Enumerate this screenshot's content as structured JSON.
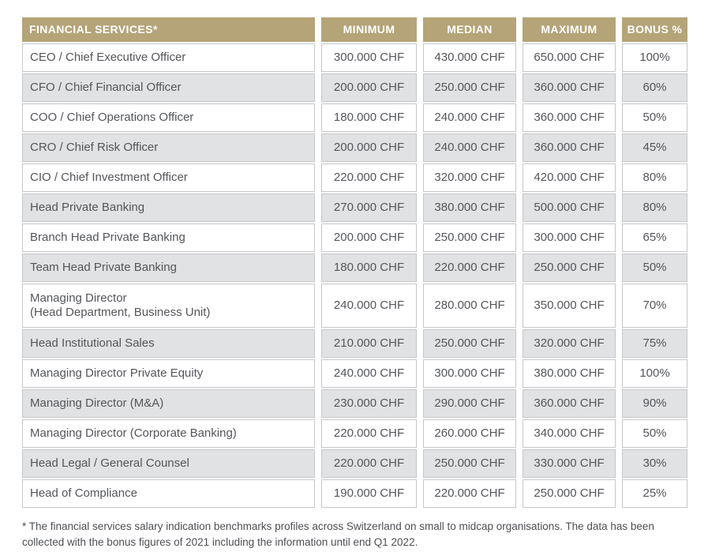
{
  "chart_data": {
    "type": "table",
    "title": "FINANCIAL SERVICES*",
    "columns": [
      {
        "key": "role",
        "label": "FINANCIAL SERVICES*",
        "align": "left"
      },
      {
        "key": "minimum",
        "label": "MINIMUM",
        "align": "center"
      },
      {
        "key": "median",
        "label": "MEDIAN",
        "align": "center"
      },
      {
        "key": "maximum",
        "label": "MAXIMUM",
        "align": "center"
      },
      {
        "key": "bonus",
        "label": "BONUS %",
        "align": "center"
      }
    ],
    "rows": [
      {
        "role": "CEO / Chief Executive Officer",
        "minimum": "300.000 CHF",
        "median": "430.000 CHF",
        "maximum": "650.000 CHF",
        "bonus": "100%"
      },
      {
        "role": "CFO / Chief Financial Officer",
        "minimum": "200.000 CHF",
        "median": "250.000 CHF",
        "maximum": "360.000 CHF",
        "bonus": "60%"
      },
      {
        "role": "COO / Chief Operations Officer",
        "minimum": "180.000 CHF",
        "median": "240.000 CHF",
        "maximum": "360.000 CHF",
        "bonus": "50%"
      },
      {
        "role": "CRO / Chief Risk Officer",
        "minimum": "200.000 CHF",
        "median": "240.000 CHF",
        "maximum": "360.000 CHF",
        "bonus": "45%"
      },
      {
        "role": "CIO / Chief Investment Officer",
        "minimum": "220.000 CHF",
        "median": "320.000 CHF",
        "maximum": "420.000 CHF",
        "bonus": "80%"
      },
      {
        "role": "Head Private Banking",
        "minimum": "270.000 CHF",
        "median": "380.000 CHF",
        "maximum": "500.000 CHF",
        "bonus": "80%"
      },
      {
        "role": "Branch Head Private Banking",
        "minimum": "200.000 CHF",
        "median": "250.000 CHF",
        "maximum": "300.000 CHF",
        "bonus": "65%"
      },
      {
        "role": "Team Head Private Banking",
        "minimum": "180.000 CHF",
        "median": "220.000 CHF",
        "maximum": "250.000 CHF",
        "bonus": "50%"
      },
      {
        "role": "Managing Director\n(Head Department, Business Unit)",
        "minimum": "240.000 CHF",
        "median": "280.000 CHF",
        "maximum": "350.000 CHF",
        "bonus": "70%",
        "tall": true
      },
      {
        "role": "Head Institutional Sales",
        "minimum": "210.000 CHF",
        "median": "250.000 CHF",
        "maximum": "320.000 CHF",
        "bonus": "75%"
      },
      {
        "role": "Managing Director Private Equity",
        "minimum": "240.000 CHF",
        "median": "300.000 CHF",
        "maximum": "380.000 CHF",
        "bonus": "100%"
      },
      {
        "role": "Managing Director (M&A)",
        "minimum": "230.000 CHF",
        "median": "290.000 CHF",
        "maximum": "360.000 CHF",
        "bonus": "90%"
      },
      {
        "role": "Managing Director (Corporate Banking)",
        "minimum": "220.000 CHF",
        "median": "260.000 CHF",
        "maximum": "340.000 CHF",
        "bonus": "50%"
      },
      {
        "role": "Head Legal / General Counsel",
        "minimum": "220.000 CHF",
        "median": "250.000 CHF",
        "maximum": "330.000 CHF",
        "bonus": "30%"
      },
      {
        "role": "Head of Compliance",
        "minimum": "190.000 CHF",
        "median": "220.000 CHF",
        "maximum": "250.000 CHF",
        "bonus": "25%"
      }
    ],
    "layout": {
      "alternating_rows": true,
      "column_groups_separated": true,
      "header_style": "gold-band"
    }
  },
  "footnote": "* The financial services salary indication benchmarks profiles across Switzerland on small to midcap organisations. The data has been collected with the bonus figures of 2021 including the information until end Q1 2022.",
  "colors": {
    "header_bg": "#b5a478",
    "header_text": "#ffffff",
    "row_bg": "#ffffff",
    "row_alt_bg": "#e1e2e3",
    "cell_border": "#c6c7c9",
    "cell_text": "#54565a",
    "footnote_text": "#4d4f53"
  }
}
